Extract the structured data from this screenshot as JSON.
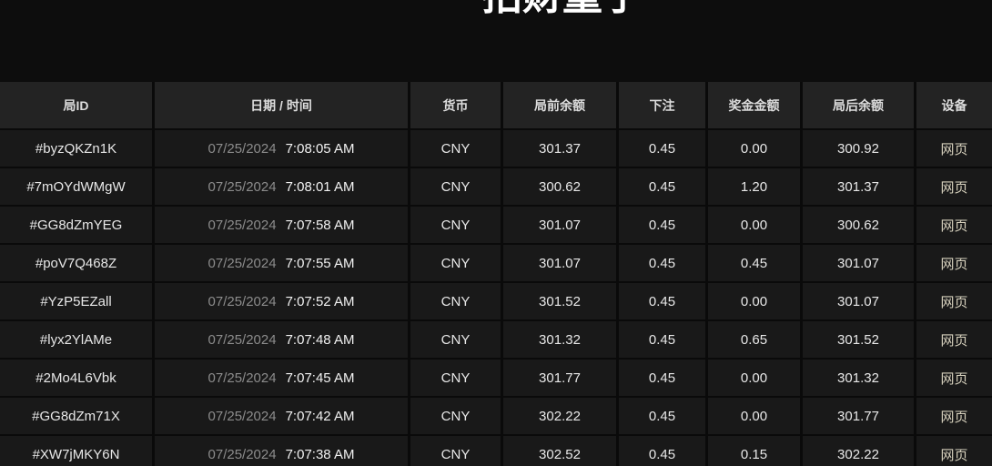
{
  "page": {
    "title": "招财童子"
  },
  "colors": {
    "page_background": "#0d0d0d",
    "header_background": "#232323",
    "row_background": "#191919",
    "divider": "#0a0a0a",
    "header_text": "#dcdcdc",
    "value_text": "#e8e8e8",
    "date_text": "#8c8c8c",
    "time_text": "#f2f2f2",
    "device_text": "#d8d2be"
  },
  "table": {
    "columns": [
      {
        "key": "round_id",
        "label": "局ID"
      },
      {
        "key": "datetime",
        "label": "日期 / 时间"
      },
      {
        "key": "currency",
        "label": "货币"
      },
      {
        "key": "balance_before",
        "label": "局前余额"
      },
      {
        "key": "bet",
        "label": "下注"
      },
      {
        "key": "prize",
        "label": "奖金金额"
      },
      {
        "key": "balance_after",
        "label": "局后余额"
      },
      {
        "key": "device",
        "label": "设备"
      }
    ],
    "rows": [
      {
        "round_id": "#byzQKZn1K",
        "date": "07/25/2024",
        "time": "7:08:05 AM",
        "currency": "CNY",
        "balance_before": "301.37",
        "bet": "0.45",
        "prize": "0.00",
        "balance_after": "300.92",
        "device": "网页"
      },
      {
        "round_id": "#7mOYdWMgW",
        "date": "07/25/2024",
        "time": "7:08:01 AM",
        "currency": "CNY",
        "balance_before": "300.62",
        "bet": "0.45",
        "prize": "1.20",
        "balance_after": "301.37",
        "device": "网页"
      },
      {
        "round_id": "#GG8dZmYEG",
        "date": "07/25/2024",
        "time": "7:07:58 AM",
        "currency": "CNY",
        "balance_before": "301.07",
        "bet": "0.45",
        "prize": "0.00",
        "balance_after": "300.62",
        "device": "网页"
      },
      {
        "round_id": "#poV7Q468Z",
        "date": "07/25/2024",
        "time": "7:07:55 AM",
        "currency": "CNY",
        "balance_before": "301.07",
        "bet": "0.45",
        "prize": "0.45",
        "balance_after": "301.07",
        "device": "网页"
      },
      {
        "round_id": "#YzP5EZall",
        "date": "07/25/2024",
        "time": "7:07:52 AM",
        "currency": "CNY",
        "balance_before": "301.52",
        "bet": "0.45",
        "prize": "0.00",
        "balance_after": "301.07",
        "device": "网页"
      },
      {
        "round_id": "#lyx2YlAMe",
        "date": "07/25/2024",
        "time": "7:07:48 AM",
        "currency": "CNY",
        "balance_before": "301.32",
        "bet": "0.45",
        "prize": "0.65",
        "balance_after": "301.52",
        "device": "网页"
      },
      {
        "round_id": "#2Mo4L6Vbk",
        "date": "07/25/2024",
        "time": "7:07:45 AM",
        "currency": "CNY",
        "balance_before": "301.77",
        "bet": "0.45",
        "prize": "0.00",
        "balance_after": "301.32",
        "device": "网页"
      },
      {
        "round_id": "#GG8dZm71X",
        "date": "07/25/2024",
        "time": "7:07:42 AM",
        "currency": "CNY",
        "balance_before": "302.22",
        "bet": "0.45",
        "prize": "0.00",
        "balance_after": "301.77",
        "device": "网页"
      },
      {
        "round_id": "#XW7jMKY6N",
        "date": "07/25/2024",
        "time": "7:07:38 AM",
        "currency": "CNY",
        "balance_before": "302.52",
        "bet": "0.45",
        "prize": "0.15",
        "balance_after": "302.22",
        "device": "网页"
      }
    ]
  }
}
